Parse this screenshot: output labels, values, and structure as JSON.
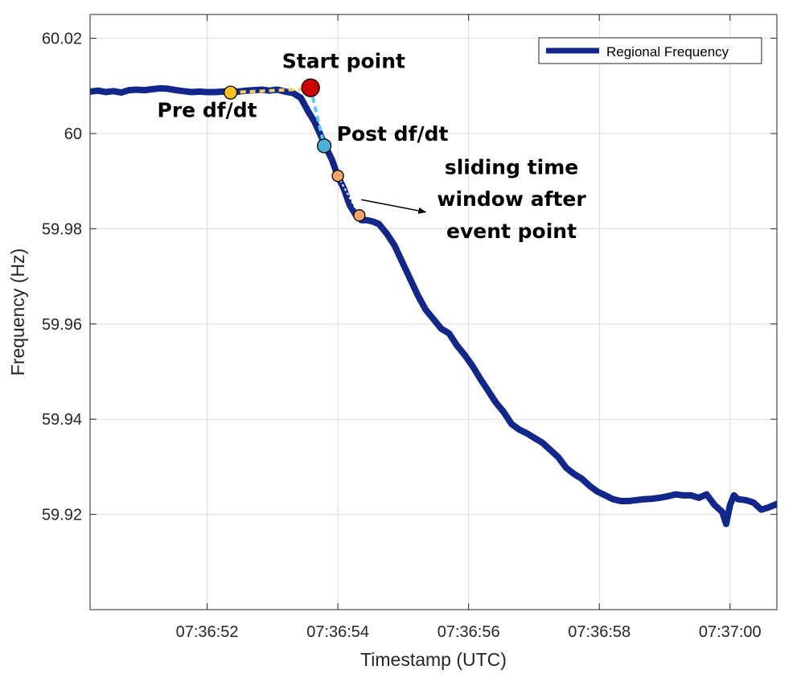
{
  "chart_data": {
    "type": "line",
    "xlabel": "Timestamp (UTC)",
    "ylabel": "Frequency (Hz)",
    "xlim": [
      0,
      17.6
    ],
    "ylim": [
      59.9,
      60.025
    ],
    "x_ticks": [
      {
        "value": 3,
        "label": "07:36:52"
      },
      {
        "value": 6.35,
        "label": "07:36:54"
      },
      {
        "value": 9.7,
        "label": "07:36:56"
      },
      {
        "value": 13.05,
        "label": "07:36:58"
      },
      {
        "value": 16.4,
        "label": "07:37:00"
      }
    ],
    "y_ticks": [
      {
        "value": 59.92,
        "label": "59.92"
      },
      {
        "value": 59.94,
        "label": "59.94"
      },
      {
        "value": 59.96,
        "label": "59.96"
      },
      {
        "value": 59.98,
        "label": "59.98"
      },
      {
        "value": 60.0,
        "label": "60"
      },
      {
        "value": 60.02,
        "label": "60.02"
      }
    ],
    "grid": true,
    "legend_position": "top-right",
    "series": [
      {
        "name": "Regional Frequency",
        "color": "#11278b",
        "x": [
          0,
          0.2,
          0.4,
          0.6,
          0.8,
          1.0,
          1.2,
          1.4,
          1.6,
          1.8,
          2.0,
          2.2,
          2.4,
          2.6,
          2.8,
          3.0,
          3.2,
          3.4,
          3.6,
          3.8,
          4.0,
          4.2,
          4.4,
          4.6,
          4.8,
          5.0,
          5.2,
          5.4,
          5.6,
          5.75,
          5.9,
          6.05,
          6.2,
          6.35,
          6.5,
          6.65,
          6.8,
          6.95,
          7.1,
          7.25,
          7.4,
          7.6,
          7.8,
          8.0,
          8.2,
          8.4,
          8.6,
          8.8,
          9.0,
          9.2,
          9.4,
          9.6,
          9.8,
          10.0,
          10.2,
          10.4,
          10.6,
          10.8,
          11.0,
          11.2,
          11.4,
          11.6,
          11.8,
          12.0,
          12.2,
          12.4,
          12.6,
          12.8,
          13.0,
          13.2,
          13.4,
          13.6,
          13.8,
          14.0,
          14.2,
          14.4,
          14.6,
          14.8,
          15.0,
          15.2,
          15.4,
          15.6,
          15.8,
          16.0,
          16.2,
          16.3,
          16.4,
          16.5,
          16.6,
          16.8,
          17.0,
          17.2,
          17.4,
          17.6
        ],
        "y": [
          60.0088,
          60.009,
          60.0087,
          60.0089,
          60.0086,
          60.0091,
          60.0092,
          60.0091,
          60.0093,
          60.0095,
          60.0094,
          60.0091,
          60.0089,
          60.0087,
          60.0088,
          60.0087,
          60.0087,
          60.0088,
          60.0089,
          60.0088,
          60.009,
          60.0091,
          60.0092,
          60.009,
          60.0092,
          60.0088,
          60.0085,
          60.0075,
          60.0045,
          60.0025,
          59.9998,
          59.997,
          59.9945,
          59.991,
          59.9885,
          59.985,
          59.983,
          59.9818,
          59.9818,
          59.9815,
          59.981,
          59.979,
          59.9765,
          59.973,
          59.9695,
          59.966,
          59.963,
          59.961,
          59.959,
          59.958,
          59.9555,
          59.9535,
          59.9512,
          59.9485,
          59.946,
          59.9435,
          59.9415,
          59.939,
          59.9378,
          59.937,
          59.936,
          59.935,
          59.9335,
          59.932,
          59.9298,
          59.9285,
          59.9275,
          59.926,
          59.9248,
          59.924,
          59.9232,
          59.9228,
          59.9228,
          59.923,
          59.9232,
          59.9233,
          59.9235,
          59.9238,
          59.9242,
          59.924,
          59.924,
          59.9235,
          59.9242,
          59.922,
          59.9205,
          59.918,
          59.922,
          59.924,
          59.9232,
          59.923,
          59.9225,
          59.921,
          59.9215,
          59.9222
        ]
      }
    ],
    "markers": [
      {
        "name": "pre-dfdt-point",
        "x": 3.6,
        "y": 60.0086,
        "color": "#f7c21b",
        "r": 8
      },
      {
        "name": "start-point",
        "x": 5.65,
        "y": 60.0096,
        "color": "#cc0000",
        "r": 11
      },
      {
        "name": "post-dfdt-point",
        "x": 6.0,
        "y": 59.9974,
        "color": "#4bafd6",
        "r": 8.5
      },
      {
        "name": "window-start-point",
        "x": 6.35,
        "y": 59.9911,
        "color": "#f7a26b",
        "r": 7
      },
      {
        "name": "window-end-point",
        "x": 6.9,
        "y": 59.9828,
        "color": "#f7a26b",
        "r": 7
      }
    ],
    "dashed_segments": [
      {
        "name": "pre-dfdt-dash",
        "x1": 3.6,
        "y1": 60.0086,
        "x2": 5.65,
        "y2": 60.0094,
        "color": "#f3cd5a"
      },
      {
        "name": "post-dfdt-dash",
        "x1": 5.65,
        "y1": 60.0096,
        "x2": 6.0,
        "y2": 59.9974,
        "color": "#5cc8ee"
      },
      {
        "name": "window-dash",
        "x1": 6.35,
        "y1": 59.9911,
        "x2": 6.9,
        "y2": 59.9828,
        "color": "#ffffff"
      }
    ],
    "annotations": [
      {
        "name": "label-start-point",
        "text": "Start point",
        "x": 6.5,
        "y": 60.0138
      },
      {
        "name": "label-pre-dfdt",
        "text": "Pre df/dt",
        "x": 3.0,
        "y": 60.0035
      },
      {
        "name": "label-post-dfdt",
        "text": "Post df/dt",
        "x": 7.75,
        "y": 59.9985
      },
      {
        "name": "label-window-1",
        "text": "sliding time",
        "x": 10.8,
        "y": 59.9915
      },
      {
        "name": "label-window-2",
        "text": "window after",
        "x": 10.8,
        "y": 59.9848
      },
      {
        "name": "label-window-3",
        "text": "event point",
        "x": 10.8,
        "y": 59.978
      }
    ],
    "arrow": {
      "x1": 6.95,
      "y1": 59.9861,
      "x2": 8.6,
      "y2": 59.9835
    }
  }
}
